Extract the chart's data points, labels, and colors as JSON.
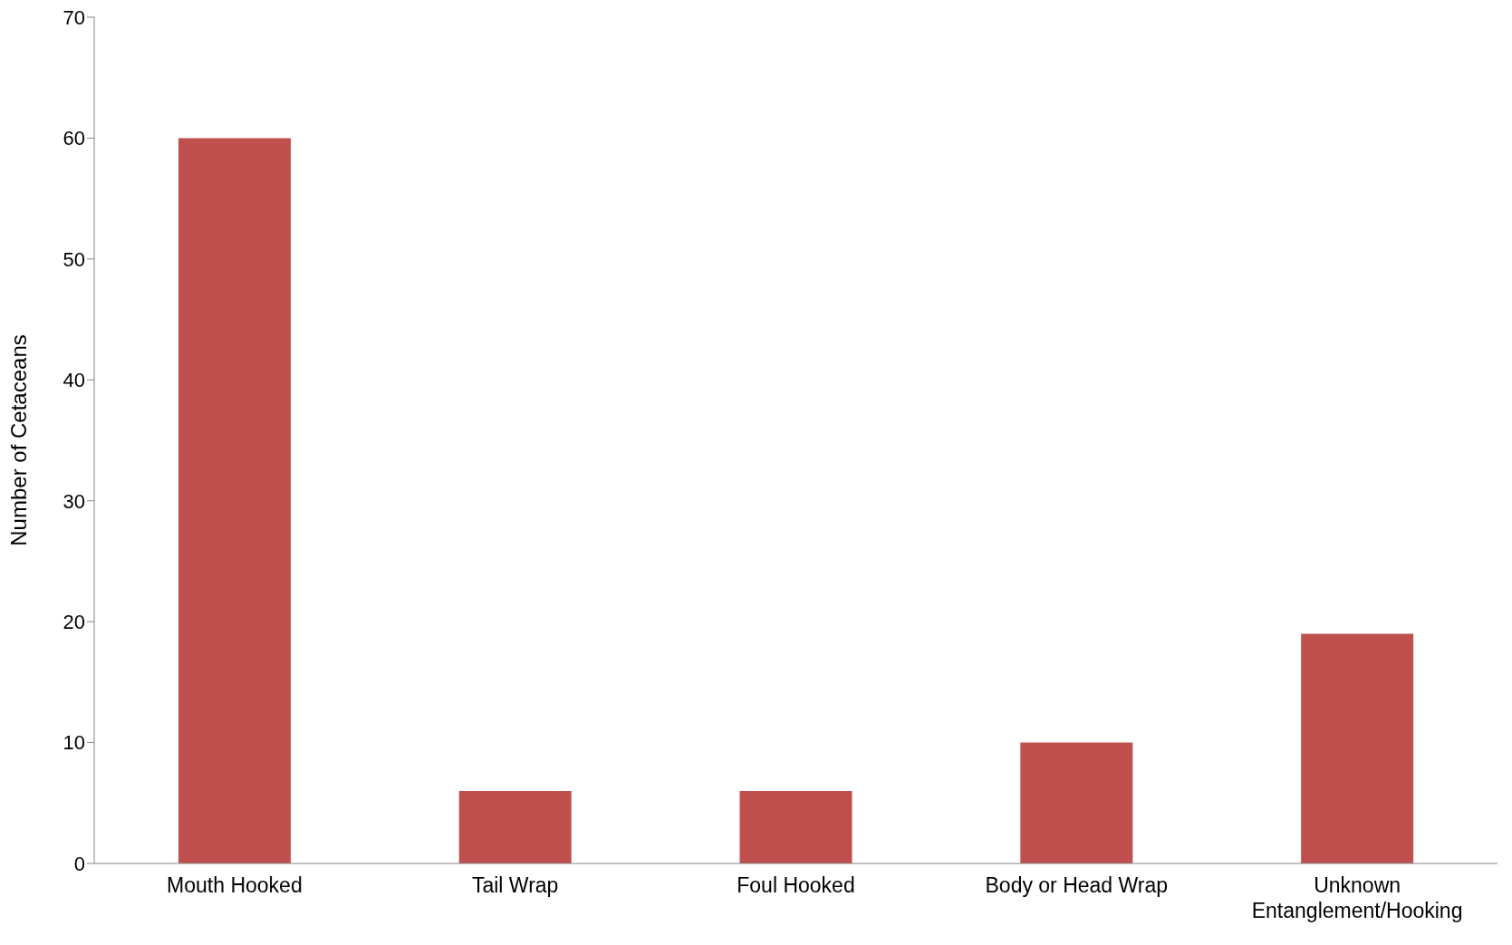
{
  "chart_data": {
    "type": "bar",
    "ylabel": "Number of Cetaceans",
    "categories": [
      "Mouth Hooked",
      "Tail Wrap",
      "Foul Hooked",
      "Body or Head Wrap",
      "Unknown Entanglement/Hooking"
    ],
    "values": [
      60,
      6,
      6,
      10,
      19
    ],
    "color": "#c0504d",
    "ylim": [
      0,
      70
    ],
    "yticks": [
      0,
      10,
      20,
      30,
      40,
      50,
      60,
      70
    ],
    "grid": false,
    "legend": false
  }
}
